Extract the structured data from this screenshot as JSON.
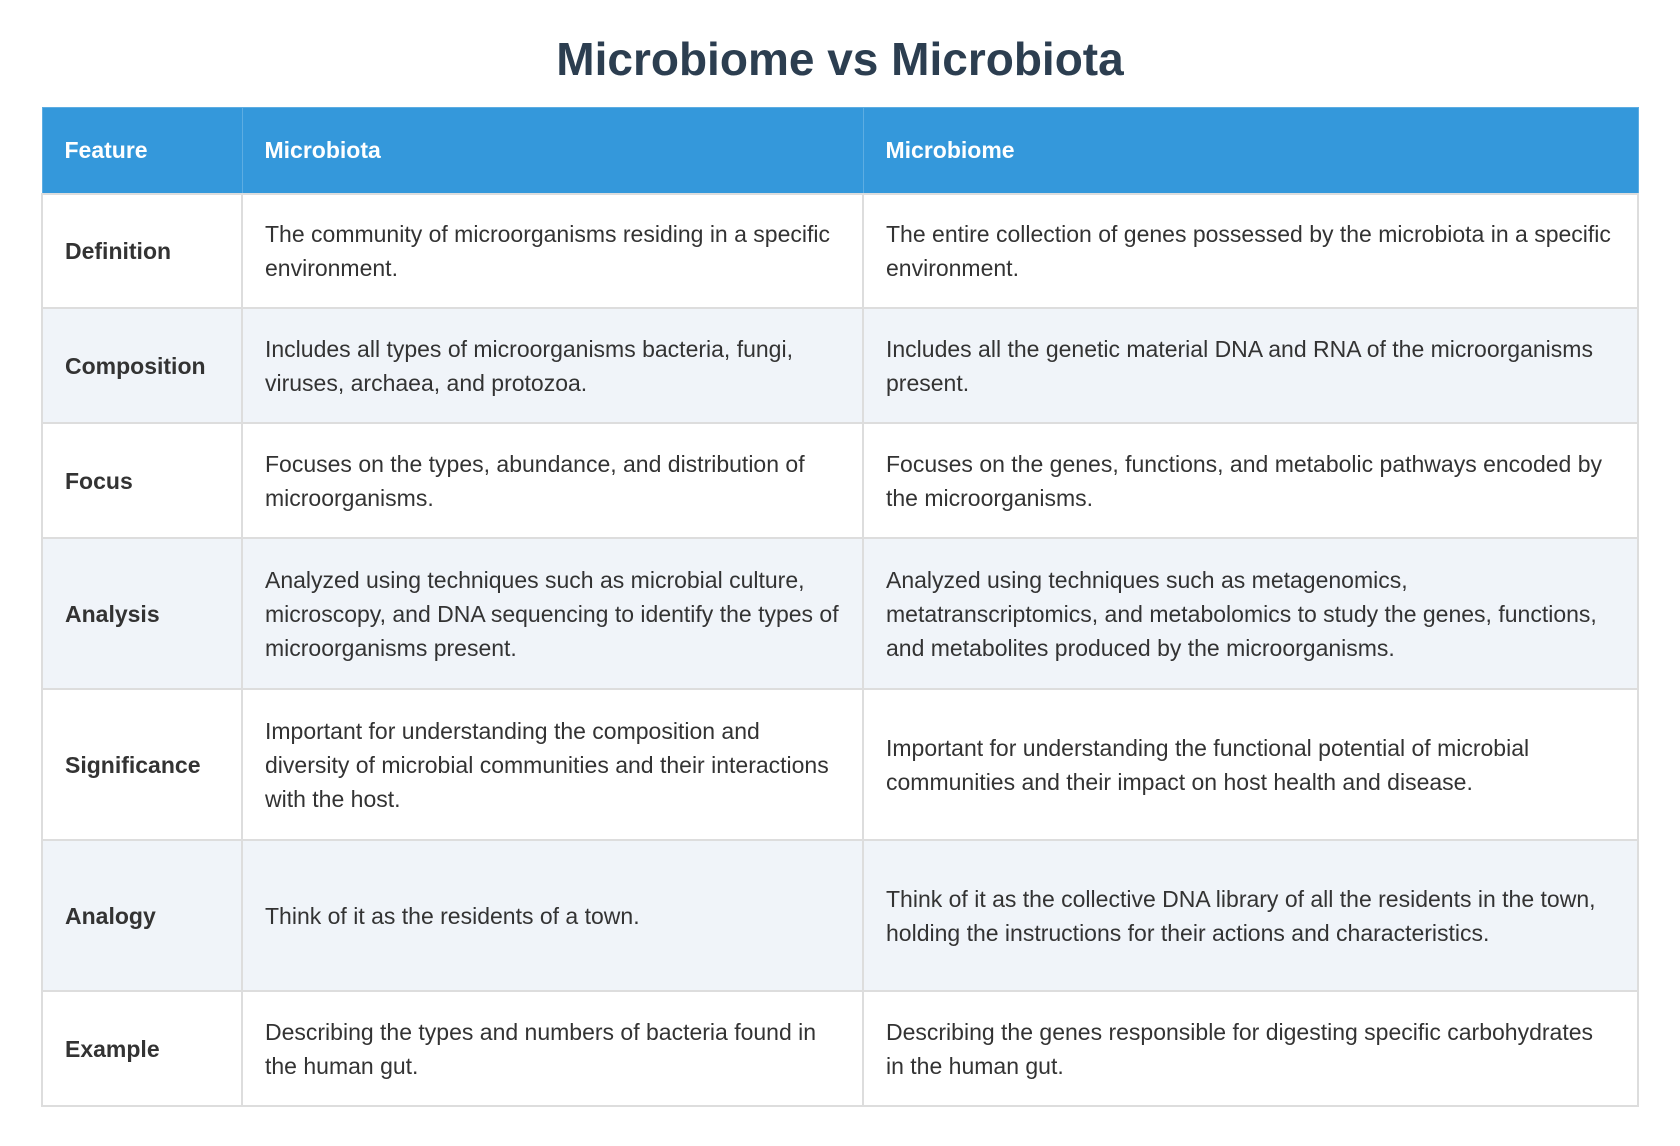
{
  "title": "Microbiome vs Microbiota",
  "table": {
    "headers": [
      "Feature",
      "Microbiota",
      "Microbiome"
    ],
    "rows": [
      [
        "Definition",
        "The community of microorganisms residing in a specific environment.",
        "The entire collection of genes possessed by the microbiota in a specific environment."
      ],
      [
        "Composition",
        "Includes all types of microorganisms bacteria, fungi, viruses, archaea, and protozoa.",
        "Includes all the genetic material DNA and RNA of the microorganisms present."
      ],
      [
        "Focus",
        "Focuses on the types, abundance, and distribution of microorganisms.",
        "Focuses on the genes, functions, and metabolic pathways encoded by the microorganisms."
      ],
      [
        "Analysis",
        "Analyzed using techniques such as microbial culture, microscopy, and DNA sequencing to identify the types of microorganisms present.",
        "Analyzed using techniques such as metagenomics, metatranscriptomics, and metabolomics to study the genes, functions, and metabolites produced by the microorganisms."
      ],
      [
        "Significance",
        "Important for understanding the composition and diversity of microbial communities and their interactions with the host.",
        "Important for understanding the functional potential of microbial communities and their impact on host health and disease."
      ],
      [
        "Analogy",
        "Think of it as the residents of a town.",
        "Think of it as the collective DNA library of all the residents in the town, holding the instructions for their actions and characteristics."
      ],
      [
        "Example",
        "Describing the types and numbers of bacteria found in the human gut.",
        "Describing the genes responsible for digesting specific carbohydrates in the human gut."
      ]
    ]
  },
  "colors": {
    "header": "#3498db",
    "title": "#2c3e50",
    "alt_row": "#f0f4f9"
  }
}
